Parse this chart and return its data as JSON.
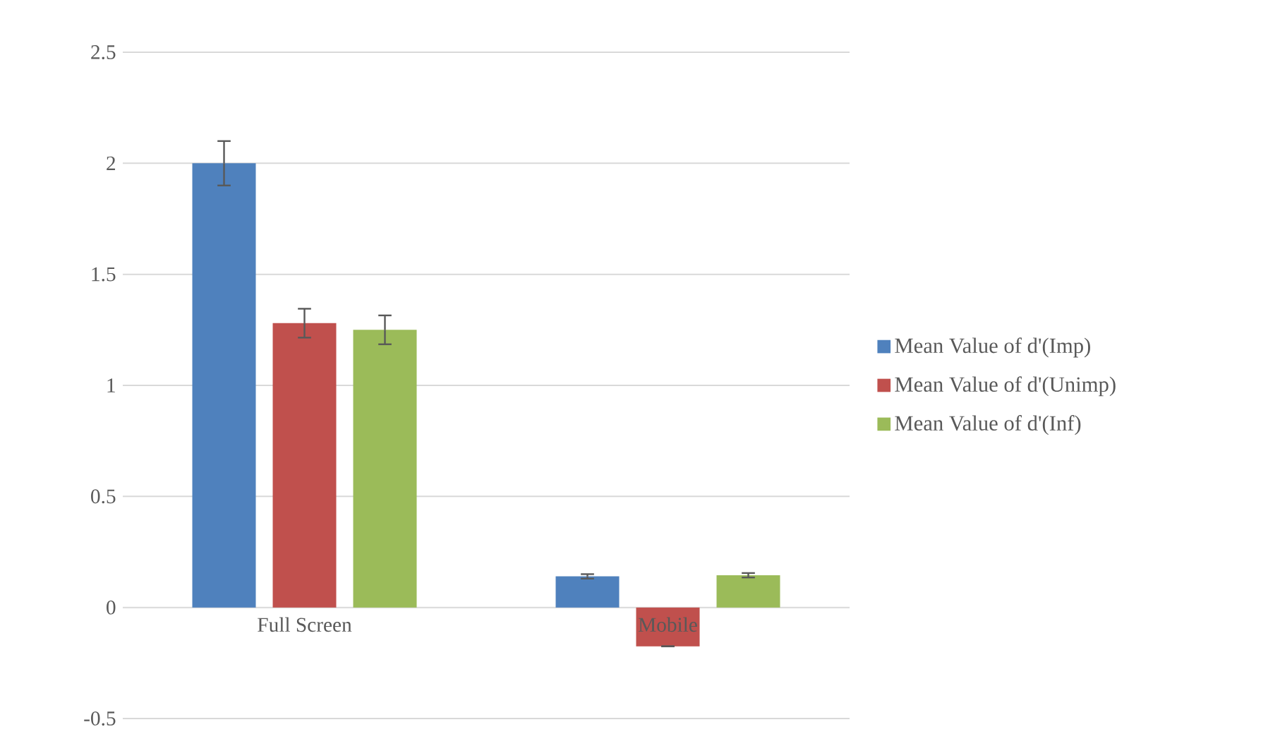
{
  "chart_data": {
    "type": "bar",
    "categories": [
      "Full Screen",
      "Mobile"
    ],
    "series": [
      {
        "name": "Mean Value of d'(Imp)",
        "color": "#4f81bd",
        "values": [
          2.0,
          0.14
        ],
        "errors": [
          0.1,
          0.01
        ]
      },
      {
        "name": "Mean Value of d'(Unimp)",
        "color": "#c0504d",
        "values": [
          1.28,
          -0.175
        ],
        "errors": [
          0.065,
          null
        ]
      },
      {
        "name": "Mean Value of d'(Inf)",
        "color": "#9bbb59",
        "values": [
          1.25,
          0.145
        ],
        "errors": [
          0.065,
          0.01
        ]
      }
    ],
    "ylim": [
      -0.5,
      2.5
    ],
    "yticks": [
      -0.5,
      0,
      0.5,
      1,
      1.5,
      2,
      2.5
    ],
    "grid": "y",
    "legend": "right"
  }
}
